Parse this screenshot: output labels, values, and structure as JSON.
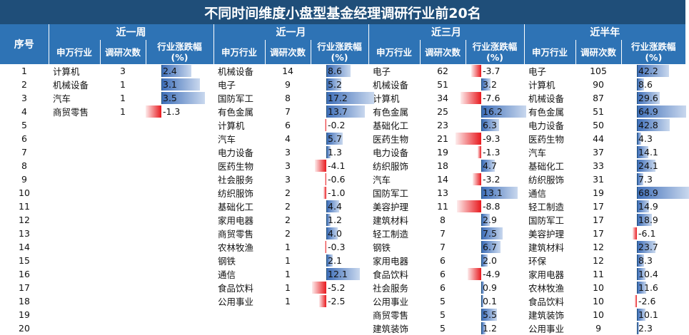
{
  "title": "不同时间维度小盘型基金经理调研行业前20名",
  "index_label": "序号",
  "col_labels": {
    "ind": "申万行业",
    "cnt": "调研次数",
    "chg": "行业涨跌幅\n(%)"
  },
  "periods": [
    {
      "label": "近一周",
      "rows": [
        {
          "ind": "计算机",
          "cnt": "3",
          "chg": "2.4",
          "v": 2.4
        },
        {
          "ind": "机械设备",
          "cnt": "1",
          "chg": "3.1",
          "v": 3.1
        },
        {
          "ind": "汽车",
          "cnt": "1",
          "chg": "3.5",
          "v": 3.5
        },
        {
          "ind": "商贸零售",
          "cnt": "1",
          "chg": "-1.3",
          "v": -1.3
        },
        {
          "ind": "",
          "cnt": "",
          "chg": "",
          "v": 0
        },
        {
          "ind": "",
          "cnt": "",
          "chg": "",
          "v": 0
        },
        {
          "ind": "",
          "cnt": "",
          "chg": "",
          "v": 0
        },
        {
          "ind": "",
          "cnt": "",
          "chg": "",
          "v": 0
        },
        {
          "ind": "",
          "cnt": "",
          "chg": "",
          "v": 0
        },
        {
          "ind": "",
          "cnt": "",
          "chg": "",
          "v": 0
        },
        {
          "ind": "",
          "cnt": "",
          "chg": "",
          "v": 0
        },
        {
          "ind": "",
          "cnt": "",
          "chg": "",
          "v": 0
        },
        {
          "ind": "",
          "cnt": "",
          "chg": "",
          "v": 0
        },
        {
          "ind": "",
          "cnt": "",
          "chg": "",
          "v": 0
        },
        {
          "ind": "",
          "cnt": "",
          "chg": "",
          "v": 0
        },
        {
          "ind": "",
          "cnt": "",
          "chg": "",
          "v": 0
        },
        {
          "ind": "",
          "cnt": "",
          "chg": "",
          "v": 0
        },
        {
          "ind": "",
          "cnt": "",
          "chg": "",
          "v": 0
        },
        {
          "ind": "",
          "cnt": "",
          "chg": "",
          "v": 0
        },
        {
          "ind": "",
          "cnt": "",
          "chg": "",
          "v": 0
        }
      ]
    },
    {
      "label": "近一月",
      "rows": [
        {
          "ind": "机械设备",
          "cnt": "14",
          "chg": "8.6",
          "v": 8.6
        },
        {
          "ind": "电子",
          "cnt": "9",
          "chg": "5.2",
          "v": 5.2
        },
        {
          "ind": "国防军工",
          "cnt": "8",
          "chg": "17.2",
          "v": 17.2
        },
        {
          "ind": "有色金属",
          "cnt": "7",
          "chg": "13.7",
          "v": 13.7
        },
        {
          "ind": "计算机",
          "cnt": "6",
          "chg": "-0.2",
          "v": -0.2
        },
        {
          "ind": "汽车",
          "cnt": "4",
          "chg": "5.7",
          "v": 5.7
        },
        {
          "ind": "电力设备",
          "cnt": "3",
          "chg": "1.3",
          "v": 1.3
        },
        {
          "ind": "医药生物",
          "cnt": "3",
          "chg": "-4.1",
          "v": -4.1
        },
        {
          "ind": "社会服务",
          "cnt": "3",
          "chg": "-0.6",
          "v": -0.6
        },
        {
          "ind": "纺织服饰",
          "cnt": "2",
          "chg": "-1.0",
          "v": -1.0
        },
        {
          "ind": "基础化工",
          "cnt": "2",
          "chg": "4.4",
          "v": 4.4
        },
        {
          "ind": "家用电器",
          "cnt": "2",
          "chg": "1.2",
          "v": 1.2
        },
        {
          "ind": "商贸零售",
          "cnt": "2",
          "chg": "4.0",
          "v": 4.0
        },
        {
          "ind": "农林牧渔",
          "cnt": "1",
          "chg": "-0.3",
          "v": -0.3
        },
        {
          "ind": "钢铁",
          "cnt": "1",
          "chg": "2.1",
          "v": 2.1
        },
        {
          "ind": "通信",
          "cnt": "1",
          "chg": "12.1",
          "v": 12.1
        },
        {
          "ind": "食品饮料",
          "cnt": "1",
          "chg": "-5.2",
          "v": -5.2
        },
        {
          "ind": "公用事业",
          "cnt": "1",
          "chg": "-2.5",
          "v": -2.5
        },
        {
          "ind": "",
          "cnt": "",
          "chg": "",
          "v": 0
        },
        {
          "ind": "",
          "cnt": "",
          "chg": "",
          "v": 0
        }
      ]
    },
    {
      "label": "近三月",
      "rows": [
        {
          "ind": "电子",
          "cnt": "62",
          "chg": "-3.7",
          "v": -3.7
        },
        {
          "ind": "机械设备",
          "cnt": "51",
          "chg": "3.2",
          "v": 3.2
        },
        {
          "ind": "计算机",
          "cnt": "34",
          "chg": "-7.6",
          "v": -7.6
        },
        {
          "ind": "有色金属",
          "cnt": "25",
          "chg": "16.2",
          "v": 16.2
        },
        {
          "ind": "基础化工",
          "cnt": "23",
          "chg": "6.3",
          "v": 6.3
        },
        {
          "ind": "医药生物",
          "cnt": "21",
          "chg": "-9.3",
          "v": -9.3
        },
        {
          "ind": "电力设备",
          "cnt": "19",
          "chg": "-1.3",
          "v": -1.3
        },
        {
          "ind": "纺织服饰",
          "cnt": "18",
          "chg": "4.7",
          "v": 4.7
        },
        {
          "ind": "汽车",
          "cnt": "14",
          "chg": "-3.2",
          "v": -3.2
        },
        {
          "ind": "国防军工",
          "cnt": "13",
          "chg": "13.1",
          "v": 13.1
        },
        {
          "ind": "美容护理",
          "cnt": "11",
          "chg": "-8.8",
          "v": -8.8
        },
        {
          "ind": "建筑材料",
          "cnt": "8",
          "chg": "2.9",
          "v": 2.9
        },
        {
          "ind": "轻工制造",
          "cnt": "7",
          "chg": "7.5",
          "v": 7.5
        },
        {
          "ind": "钢铁",
          "cnt": "7",
          "chg": "6.7",
          "v": 6.7
        },
        {
          "ind": "家用电器",
          "cnt": "6",
          "chg": "2.0",
          "v": 2.0
        },
        {
          "ind": "食品饮料",
          "cnt": "6",
          "chg": "-4.9",
          "v": -4.9
        },
        {
          "ind": "社会服务",
          "cnt": "6",
          "chg": "0.9",
          "v": 0.9
        },
        {
          "ind": "公用事业",
          "cnt": "5",
          "chg": "0.1",
          "v": 0.1
        },
        {
          "ind": "商贸零售",
          "cnt": "5",
          "chg": "5.5",
          "v": 5.5
        },
        {
          "ind": "建筑装饰",
          "cnt": "5",
          "chg": "1.2",
          "v": 1.2
        }
      ]
    },
    {
      "label": "近半年",
      "rows": [
        {
          "ind": "电子",
          "cnt": "105",
          "chg": "42.2",
          "v": 42.2
        },
        {
          "ind": "计算机",
          "cnt": "90",
          "chg": "8.6",
          "v": 8.6
        },
        {
          "ind": "机械设备",
          "cnt": "87",
          "chg": "29.6",
          "v": 29.6
        },
        {
          "ind": "有色金属",
          "cnt": "51",
          "chg": "64.9",
          "v": 64.9
        },
        {
          "ind": "电力设备",
          "cnt": "50",
          "chg": "42.8",
          "v": 42.8
        },
        {
          "ind": "医药生物",
          "cnt": "44",
          "chg": "4.3",
          "v": 4.3
        },
        {
          "ind": "汽车",
          "cnt": "37",
          "chg": "14.1",
          "v": 14.1
        },
        {
          "ind": "基础化工",
          "cnt": "33",
          "chg": "24.1",
          "v": 24.1
        },
        {
          "ind": "纺织服饰",
          "cnt": "31",
          "chg": "7.3",
          "v": 7.3
        },
        {
          "ind": "通信",
          "cnt": "19",
          "chg": "68.9",
          "v": 68.9
        },
        {
          "ind": "轻工制造",
          "cnt": "17",
          "chg": "14.9",
          "v": 14.9
        },
        {
          "ind": "国防军工",
          "cnt": "17",
          "chg": "18.9",
          "v": 18.9
        },
        {
          "ind": "美容护理",
          "cnt": "17",
          "chg": "-6.1",
          "v": -6.1
        },
        {
          "ind": "建筑材料",
          "cnt": "12",
          "chg": "23.7",
          "v": 23.7
        },
        {
          "ind": "环保",
          "cnt": "12",
          "chg": "8.3",
          "v": 8.3
        },
        {
          "ind": "家用电器",
          "cnt": "11",
          "chg": "10.4",
          "v": 10.4
        },
        {
          "ind": "农林牧渔",
          "cnt": "10",
          "chg": "11.6",
          "v": 11.6
        },
        {
          "ind": "食品饮料",
          "cnt": "10",
          "chg": "-2.6",
          "v": -2.6
        },
        {
          "ind": "建筑装饰",
          "cnt": "10",
          "chg": "10.1",
          "v": 10.1
        },
        {
          "ind": "公用事业",
          "cnt": "9",
          "chg": "2.3",
          "v": 2.3
        }
      ]
    }
  ]
}
